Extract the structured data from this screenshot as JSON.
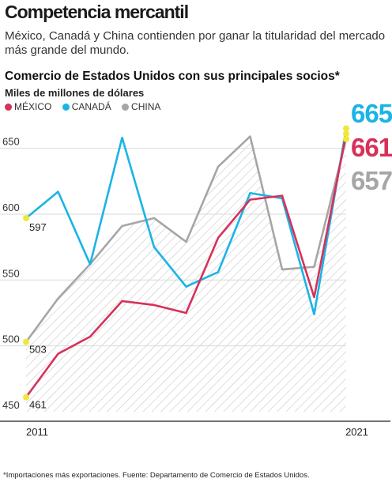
{
  "header": {
    "title": "Competencia mercantil",
    "subtitle": "México, Canadá y China contienden por ganar la titularidad del mercado más grande del mundo."
  },
  "footnote": "*Importaciones más exportaciones. Fuente: Departamento de Comercio de Estados Unidos.",
  "colors": {
    "mexico": "#d6315a",
    "canada": "#1ab4e5",
    "china": "#a6a6a6",
    "marker": "#f2e63a",
    "grid": "#d9d9d9",
    "hatch": "#c2c2c2"
  },
  "chart_data": {
    "type": "line",
    "title": "Comercio de Estados Unidos con sus principales socios*",
    "ylabel": "Miles de millones de dólares",
    "ylim": [
      450,
      680
    ],
    "yticks": [
      450,
      500,
      550,
      600,
      650
    ],
    "x": [
      2011,
      2012,
      2013,
      2014,
      2015,
      2016,
      2017,
      2018,
      2019,
      2020,
      2021
    ],
    "xtick_labels": [
      "2011",
      "2021"
    ],
    "grid": true,
    "legend_position": "top-left",
    "series": [
      {
        "key": "mexico",
        "name": "MÉXICO",
        "values": [
          461,
          494,
          507,
          534,
          531,
          525,
          582,
          611,
          614,
          537,
          661
        ]
      },
      {
        "key": "canada",
        "name": "CANADÁ",
        "values": [
          597,
          617,
          562,
          658,
          575,
          545,
          556,
          616,
          612,
          524,
          665
        ]
      },
      {
        "key": "china",
        "name": "CHINA",
        "values": [
          503,
          536,
          562,
          591,
          597,
          579,
          636,
          659,
          558,
          560,
          657
        ]
      }
    ],
    "start_labels": [
      "597",
      "503",
      "461"
    ],
    "end_labels": [
      "665",
      "661",
      "657"
    ]
  }
}
